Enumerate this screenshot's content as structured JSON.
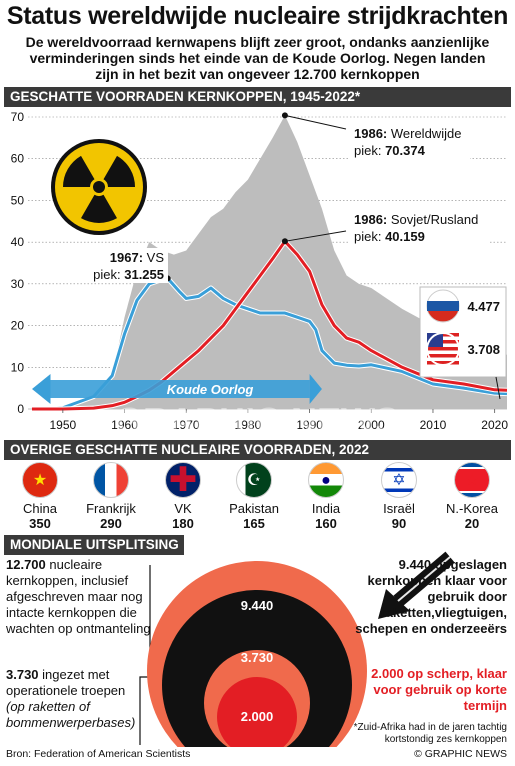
{
  "title": "Status wereldwijde nucleaire strijdkrachten",
  "intro": "De wereldvoorraad kernwapens blijft zeer groot, ondanks aanzienlijke verminderingen sinds het einde van de Koude Oorlog. Negen landen zijn in het bezit van ongeveer 12.700 kernkoppen",
  "section1": "GESCHATTE VOORRADEN KERNKOPPEN, 1945-2022*",
  "section2": "OVERIGE GESCHATTE NUCLEAIRE VOORRADEN, 2022",
  "section3": "MONDIALE UITSPLITSING",
  "chart_data": {
    "type": "area",
    "xlim": [
      1945,
      2022
    ],
    "ylim": [
      0,
      70
    ],
    "y_ticks": [
      "0",
      "10",
      "20",
      "30",
      "40",
      "50",
      "60",
      "70"
    ],
    "x_ticks": [
      "1950",
      "1960",
      "1970",
      "1980",
      "1990",
      "2000",
      "2010",
      "2020"
    ],
    "x_tick_values": [
      1950,
      1960,
      1970,
      1980,
      1990,
      2000,
      2010,
      2020
    ],
    "y_tick_values": [
      0,
      10,
      20,
      30,
      40,
      50,
      60,
      70
    ],
    "series": [
      {
        "name": "Wereldwijde",
        "color": "#bdbdbd",
        "x": [
          1945,
          1950,
          1955,
          1958,
          1960,
          1962,
          1964,
          1966,
          1968,
          1970,
          1972,
          1974,
          1976,
          1978,
          1980,
          1982,
          1984,
          1986,
          1988,
          1990,
          1992,
          1994,
          1996,
          1998,
          2000,
          2005,
          2010,
          2015,
          2020,
          2022
        ],
        "y": [
          0,
          0.3,
          3,
          8,
          22,
          33,
          40,
          38,
          37,
          38,
          42,
          46,
          48,
          52,
          55,
          60,
          65,
          70.4,
          64,
          56,
          48,
          38,
          32,
          30,
          29,
          24,
          20,
          16,
          14,
          13
        ]
      },
      {
        "name": "VS",
        "color": "#3a9fd8",
        "x": [
          1945,
          1950,
          1955,
          1958,
          1960,
          1962,
          1964,
          1966,
          1967,
          1969,
          1970,
          1972,
          1974,
          1976,
          1978,
          1980,
          1982,
          1984,
          1986,
          1988,
          1990,
          1991,
          1992,
          1994,
          1996,
          1998,
          2000,
          2005,
          2010,
          2015,
          2020,
          2022
        ],
        "y": [
          0,
          0.3,
          3,
          8,
          18,
          26,
          30,
          31,
          31.3,
          28,
          26.5,
          27,
          29,
          26.5,
          25,
          24,
          23,
          23,
          23,
          22,
          21,
          19,
          14,
          11,
          10.5,
          10.3,
          10.6,
          9,
          6,
          5,
          3.8,
          3.7
        ]
      },
      {
        "name": "Sovjet/Rusland",
        "color": "#e31e24",
        "x": [
          1945,
          1950,
          1955,
          1958,
          1960,
          1962,
          1964,
          1966,
          1968,
          1970,
          1972,
          1974,
          1976,
          1978,
          1980,
          1982,
          1984,
          1986,
          1988,
          1990,
          1992,
          1994,
          1996,
          1998,
          2000,
          2005,
          2010,
          2015,
          2020,
          2022
        ],
        "y": [
          0,
          0,
          0.2,
          0.8,
          1.6,
          3,
          4.5,
          6.5,
          9,
          11.5,
          14,
          17,
          20,
          24,
          28,
          32,
          36,
          40.2,
          37,
          33,
          25,
          20,
          17,
          16,
          14,
          10,
          7,
          6,
          4.6,
          4.5
        ]
      }
    ],
    "annotations": [
      {
        "line1": "1986:",
        "line1b": " Wereldwijde",
        "line2": "piek: ",
        "value": "70.374"
      },
      {
        "line1": "1986:",
        "line1b": " Sovjet/Rusland",
        "line2": "piek: ",
        "value": "40.159"
      },
      {
        "line1": "1967:",
        "line1b": " VS",
        "line2": "piek: ",
        "value": "31.255"
      }
    ],
    "cold_war_label": "Koude Oorlog",
    "russia_value": "4.477",
    "usa_value": "3.708",
    "watermark": "GRAPHIC NEWS"
  },
  "countries": [
    {
      "name": "China",
      "value": "350",
      "flag": "china-flag-icon"
    },
    {
      "name": "Frankrijk",
      "value": "290",
      "flag": "france-flag-icon"
    },
    {
      "name": "VK",
      "value": "180",
      "flag": "uk-flag-icon"
    },
    {
      "name": "Pakistan",
      "value": "165",
      "flag": "pakistan-flag-icon"
    },
    {
      "name": "India",
      "value": "160",
      "flag": "india-flag-icon"
    },
    {
      "name": "Israël",
      "value": "90",
      "flag": "israel-flag-icon"
    },
    {
      "name": "N.-Korea",
      "value": "20",
      "flag": "north-korea-flag-icon"
    }
  ],
  "breakdown": {
    "left1_bold": "12.700",
    "left1_rest": " nucleaire kernkoppen, inclusief afgeschreven maar nog intacte kernkoppen die wachten op ontmanteling",
    "left2_bold": "3.730",
    "left2_rest": " ingezet met operationele troepen",
    "left2_italic": "(op raketten of bommenwerperbases)",
    "right1": "9.440 opgeslagen kernkoppen klaar voor gebruik door raketten,vliegtuigen, schepen en onderzeeërs",
    "right2": "2.000 op scherp, klaar voor gebruik op korte termijn",
    "circles": [
      "12.700",
      "9.440",
      "3.730",
      "2.000"
    ]
  },
  "footer": {
    "source": "Bron: Federation of American Scientists",
    "note": "*Zuid-Afrika had in de jaren tachtig kortstondig zes kernkoppen",
    "logo": "© GRAPHIC NEWS"
  }
}
